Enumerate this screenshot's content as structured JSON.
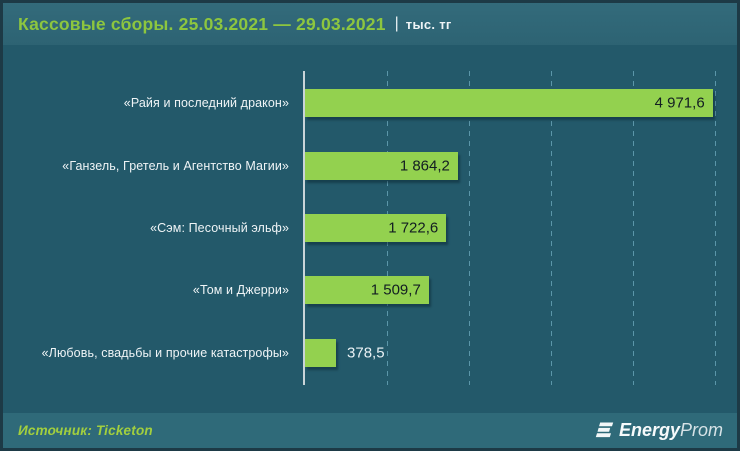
{
  "header": {
    "title": "Кассовые сборы. 25.03.2021 — 29.03.2021",
    "separator": "|",
    "unit": "тыс. тг"
  },
  "chart_data": {
    "type": "bar",
    "orientation": "horizontal",
    "title": "Кассовые сборы. 25.03.2021 — 29.03.2021 | тыс. тг",
    "categories": [
      "«Райя и последний дракон»",
      "«Ганзель, Гретель и Агентство Магии»",
      "«Сэм: Песочный эльф»",
      "«Том и Джерри»",
      "«Любовь, свадьбы и прочие катастрофы»"
    ],
    "values": [
      4971.6,
      1864.2,
      1722.6,
      1509.7,
      378.5
    ],
    "value_labels": [
      "4 971,6",
      "1 864,2",
      "1 722,6",
      "1 509,7",
      "378,5"
    ],
    "xlim": [
      0,
      5000
    ],
    "gridlines_x": [
      1000,
      2000,
      3000,
      4000,
      5000
    ],
    "grid": "dashed-vertical",
    "legend": "none",
    "bar_color": "#93d14f",
    "value_label_inside_color": "#121d22",
    "value_label_outside_color": "#eaf2f5"
  },
  "footer": {
    "source": "Источник: Ticketon",
    "logo": {
      "bold": "Energy",
      "light": "Prom",
      "icon": "energyprom-stripes-icon"
    }
  },
  "colors": {
    "frame_border": "#1d3a46",
    "header_bg": "#2f6676",
    "chart_bg": "#23596a",
    "footer_bg": "#2f6a79",
    "title_green": "#8dc63f",
    "axis_line": "#c9d4d8",
    "gridline": "#6eaabe",
    "category_text": "#eff4f6"
  }
}
